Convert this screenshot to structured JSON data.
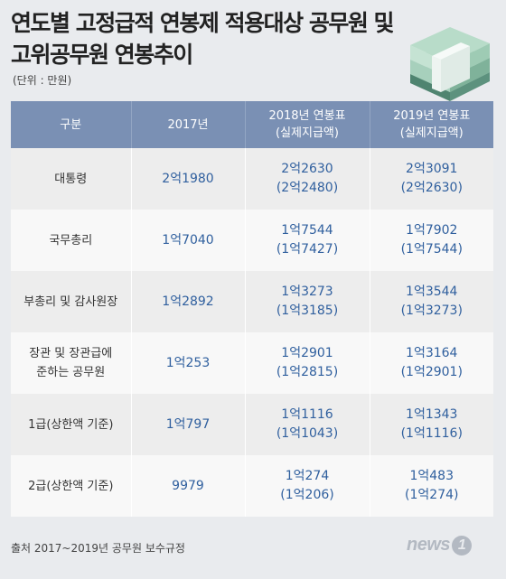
{
  "title": {
    "line1": "연도별 고정급적 연봉제 적용대상 공무원 및",
    "line2": "고위공무원 연봉추이"
  },
  "unit": "(단위 : 만원)",
  "table": {
    "headers": {
      "c0": "구분",
      "c1": "2017년",
      "c2_line1": "2018년 연봉표",
      "c2_line2": "(실제지급액)",
      "c3_line1": "2019년 연봉표",
      "c3_line2": "(실제지급액)"
    },
    "rows": [
      {
        "label1": "대통령",
        "label2": "",
        "y2017": "2억1980",
        "y2018": "2억2630",
        "y2018_actual": "(2억2480)",
        "y2019": "2억3091",
        "y2019_actual": "(2억2630)"
      },
      {
        "label1": "국무총리",
        "label2": "",
        "y2017": "1억7040",
        "y2018": "1억7544",
        "y2018_actual": "(1억7427)",
        "y2019": "1억7902",
        "y2019_actual": "(1억7544)"
      },
      {
        "label1": "부총리 및 감사원장",
        "label2": "",
        "y2017": "1억2892",
        "y2018": "1억3273",
        "y2018_actual": "(1억3185)",
        "y2019": "1억3544",
        "y2019_actual": "(1억3273)"
      },
      {
        "label1": "장관 및 장관급에",
        "label2": "준하는 공무원",
        "y2017": "1억253",
        "y2018": "1억2901",
        "y2018_actual": "(1억2815)",
        "y2019": "1억3164",
        "y2019_actual": "(1억2901)"
      },
      {
        "label1": "1급(상한액 기준)",
        "label2": "",
        "y2017": "1억797",
        "y2018": "1억1116",
        "y2018_actual": "(1억1043)",
        "y2019": "1억1343",
        "y2019_actual": "(1억1116)"
      },
      {
        "label1": "2급(상한액 기준)",
        "label2": "",
        "y2017": "9979",
        "y2018": "1억274",
        "y2018_actual": "(1억206)",
        "y2019": "1억483",
        "y2019_actual": "(1억274)"
      }
    ]
  },
  "source": "출처 2017~2019년 공무원 보수규정",
  "logo": {
    "text": "news",
    "mark": "1"
  },
  "colors": {
    "header_bg": "#7a90b4",
    "value_text": "#2f5f9e",
    "row_odd": "#ededed",
    "row_even": "#f8f8f8"
  },
  "decoration": "money-stack-icon"
}
